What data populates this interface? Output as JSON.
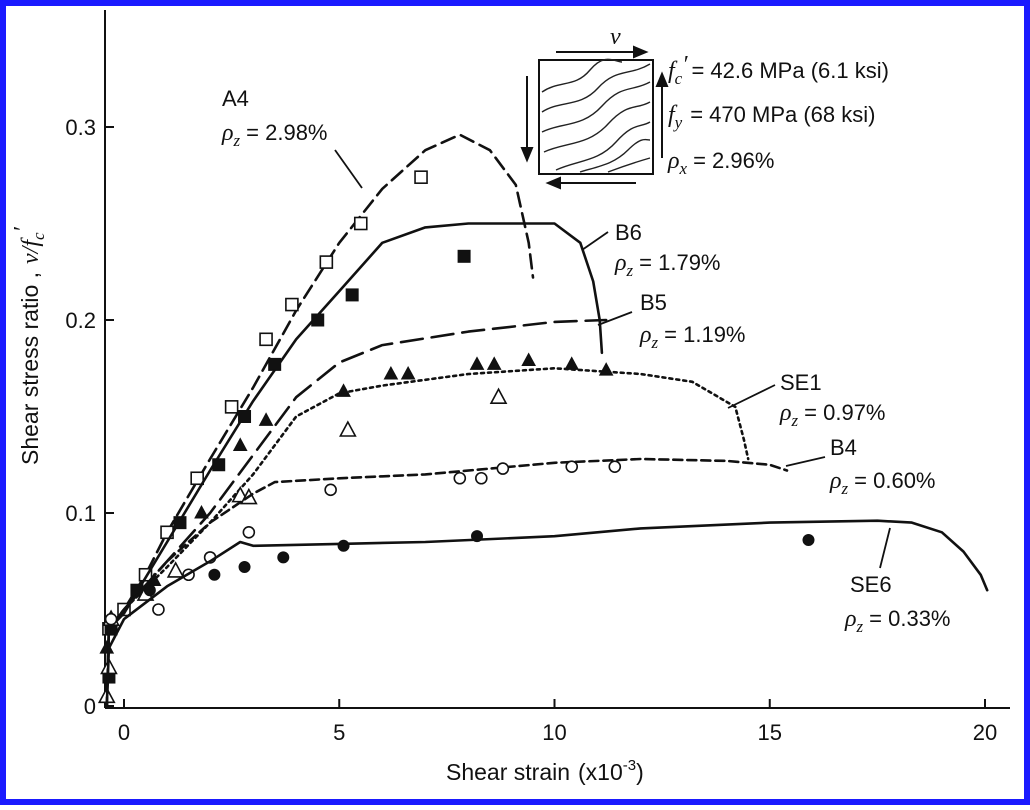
{
  "chart_data": {
    "type": "line",
    "title": "",
    "xlabel": "Shear strain",
    "xlabel_unit": "(x10",
    "xlabel_exp": "-3",
    "xlabel_close": ")",
    "ylabel": "Shear stress ratio ,",
    "ylabel_symbol": "v/f",
    "ylabel_sub": "c",
    "ylabel_prime": "′",
    "xlim": [
      -0.5,
      21
    ],
    "ylim": [
      0,
      0.36
    ],
    "xticks": [
      0,
      5,
      10,
      15,
      20
    ],
    "xtick_labels": [
      "0",
      "5",
      "10",
      "15",
      "20"
    ],
    "yticks": [
      0,
      0.1,
      0.2,
      0.3
    ],
    "ytick_labels": [
      "0",
      "0.1",
      "0.2",
      "0.3"
    ],
    "grid": false,
    "frame_color": "#1a1aff",
    "inset": {
      "shear_label": "v",
      "properties": [
        {
          "sym": "f",
          "sub": "c",
          "prime": "′",
          "text": "= 42.6 MPa (6.1 ksi)"
        },
        {
          "sym": "f",
          "sub": "y",
          "prime": "",
          "text": "= 470 MPa (68 ksi)"
        },
        {
          "sym": "ρ",
          "sub": "x",
          "prime": "",
          "text": "= 2.96%"
        }
      ]
    },
    "series": [
      {
        "name": "A4",
        "rho_label": "= 2.98%",
        "line_style": "dash-long",
        "marker": "open-square",
        "curve": [
          [
            -0.4,
            0
          ],
          [
            -0.35,
            0.04
          ],
          [
            0,
            0.05
          ],
          [
            0.5,
            0.068
          ],
          [
            1,
            0.09
          ],
          [
            2,
            0.128
          ],
          [
            3,
            0.165
          ],
          [
            4,
            0.205
          ],
          [
            5,
            0.24
          ],
          [
            6,
            0.268
          ],
          [
            7,
            0.288
          ],
          [
            7.8,
            0.296
          ],
          [
            8.5,
            0.288
          ],
          [
            9.1,
            0.27
          ],
          [
            9.4,
            0.24
          ],
          [
            9.5,
            0.222
          ]
        ],
        "points": [
          [
            -0.35,
            0.04
          ],
          [
            0,
            0.05
          ],
          [
            0.5,
            0.068
          ],
          [
            1,
            0.09
          ],
          [
            1.7,
            0.118
          ],
          [
            2.5,
            0.155
          ],
          [
            3.3,
            0.19
          ],
          [
            3.9,
            0.208
          ],
          [
            4.7,
            0.23
          ],
          [
            5.5,
            0.25
          ],
          [
            6.9,
            0.274
          ]
        ]
      },
      {
        "name": "B6",
        "rho_label": "= 1.79%",
        "line_style": "solid",
        "marker": "filled-square",
        "curve": [
          [
            -0.4,
            0
          ],
          [
            -0.35,
            0.04
          ],
          [
            0,
            0.048
          ],
          [
            1,
            0.085
          ],
          [
            2,
            0.122
          ],
          [
            3,
            0.158
          ],
          [
            4,
            0.19
          ],
          [
            5,
            0.215
          ],
          [
            6,
            0.24
          ],
          [
            7,
            0.248
          ],
          [
            8,
            0.25
          ],
          [
            9,
            0.25
          ],
          [
            10,
            0.25
          ],
          [
            10.6,
            0.24
          ],
          [
            10.9,
            0.22
          ],
          [
            11.05,
            0.2
          ],
          [
            11.1,
            0.183
          ]
        ],
        "points": [
          [
            -0.35,
            0.015
          ],
          [
            -0.3,
            0.04
          ],
          [
            0.3,
            0.06
          ],
          [
            1.3,
            0.095
          ],
          [
            2.2,
            0.125
          ],
          [
            2.8,
            0.15
          ],
          [
            3.5,
            0.177
          ],
          [
            4.5,
            0.2
          ],
          [
            5.3,
            0.213
          ],
          [
            7.9,
            0.233
          ]
        ]
      },
      {
        "name": "B5",
        "rho_label": "= 1.19%",
        "line_style": "dash-medium",
        "marker": "filled-triangle",
        "curve": [
          [
            -0.4,
            0
          ],
          [
            -0.35,
            0.04
          ],
          [
            0,
            0.05
          ],
          [
            1,
            0.075
          ],
          [
            2,
            0.1
          ],
          [
            3,
            0.13
          ],
          [
            4,
            0.16
          ],
          [
            5,
            0.178
          ],
          [
            6,
            0.187
          ],
          [
            8,
            0.194
          ],
          [
            10,
            0.199
          ],
          [
            11.2,
            0.2
          ]
        ],
        "points": [
          [
            -0.4,
            0.03
          ],
          [
            0.7,
            0.065
          ],
          [
            1.8,
            0.1
          ],
          [
            2.7,
            0.135
          ],
          [
            3.3,
            0.148
          ],
          [
            5.1,
            0.163
          ],
          [
            6.2,
            0.172
          ],
          [
            6.6,
            0.172
          ],
          [
            8.2,
            0.177
          ],
          [
            8.6,
            0.177
          ],
          [
            9.4,
            0.179
          ],
          [
            10.4,
            0.177
          ],
          [
            11.2,
            0.174
          ]
        ]
      },
      {
        "name": "SE1",
        "rho_label": "= 0.97%",
        "line_style": "dotted",
        "marker": "open-triangle",
        "curve": [
          [
            -0.4,
            0
          ],
          [
            -0.35,
            0.04
          ],
          [
            0,
            0.05
          ],
          [
            1,
            0.072
          ],
          [
            2,
            0.095
          ],
          [
            3,
            0.12
          ],
          [
            4,
            0.15
          ],
          [
            5,
            0.162
          ],
          [
            6,
            0.166
          ],
          [
            8,
            0.172
          ],
          [
            10,
            0.175
          ],
          [
            12,
            0.172
          ],
          [
            13.2,
            0.168
          ],
          [
            14.2,
            0.155
          ],
          [
            14.4,
            0.138
          ],
          [
            14.5,
            0.128
          ]
        ],
        "points": [
          [
            -0.4,
            0.005
          ],
          [
            -0.35,
            0.02
          ],
          [
            -0.3,
            0.045
          ],
          [
            0.5,
            0.058
          ],
          [
            1.2,
            0.07
          ],
          [
            2.7,
            0.109
          ],
          [
            2.9,
            0.108
          ],
          [
            5.2,
            0.143
          ],
          [
            8.7,
            0.16
          ]
        ]
      },
      {
        "name": "B4",
        "rho_label": "= 0.60%",
        "line_style": "dash-short",
        "marker": "open-circle",
        "curve": [
          [
            -0.4,
            0
          ],
          [
            -0.35,
            0.04
          ],
          [
            0,
            0.05
          ],
          [
            1,
            0.075
          ],
          [
            2,
            0.095
          ],
          [
            3,
            0.11
          ],
          [
            3.5,
            0.116
          ],
          [
            5,
            0.118
          ],
          [
            7,
            0.12
          ],
          [
            10,
            0.126
          ],
          [
            12,
            0.128
          ],
          [
            14,
            0.127
          ],
          [
            15,
            0.125
          ],
          [
            15.4,
            0.122
          ]
        ],
        "points": [
          [
            -0.3,
            0.045
          ],
          [
            0.8,
            0.05
          ],
          [
            1.5,
            0.068
          ],
          [
            2,
            0.077
          ],
          [
            2.9,
            0.09
          ],
          [
            4.8,
            0.112
          ],
          [
            7.8,
            0.118
          ],
          [
            8.3,
            0.118
          ],
          [
            8.8,
            0.123
          ],
          [
            10.4,
            0.124
          ],
          [
            11.4,
            0.124
          ]
        ]
      },
      {
        "name": "SE6",
        "rho_label": "= 0.33%",
        "line_style": "solid",
        "marker": "filled-circle",
        "curve": [
          [
            -0.4,
            0
          ],
          [
            -0.35,
            0.03
          ],
          [
            0,
            0.045
          ],
          [
            1,
            0.062
          ],
          [
            2,
            0.075
          ],
          [
            2.7,
            0.085
          ],
          [
            3,
            0.083
          ],
          [
            5,
            0.084
          ],
          [
            7,
            0.085
          ],
          [
            10,
            0.088
          ],
          [
            12,
            0.092
          ],
          [
            15,
            0.095
          ],
          [
            17.5,
            0.096
          ],
          [
            18.3,
            0.095
          ],
          [
            19,
            0.09
          ],
          [
            19.5,
            0.08
          ],
          [
            19.9,
            0.068
          ],
          [
            20.05,
            0.06
          ]
        ],
        "points": [
          [
            0.6,
            0.06
          ],
          [
            2.1,
            0.068
          ],
          [
            2.8,
            0.072
          ],
          [
            3.7,
            0.077
          ],
          [
            5.1,
            0.083
          ],
          [
            8.2,
            0.088
          ],
          [
            15.9,
            0.086
          ]
        ]
      }
    ]
  }
}
